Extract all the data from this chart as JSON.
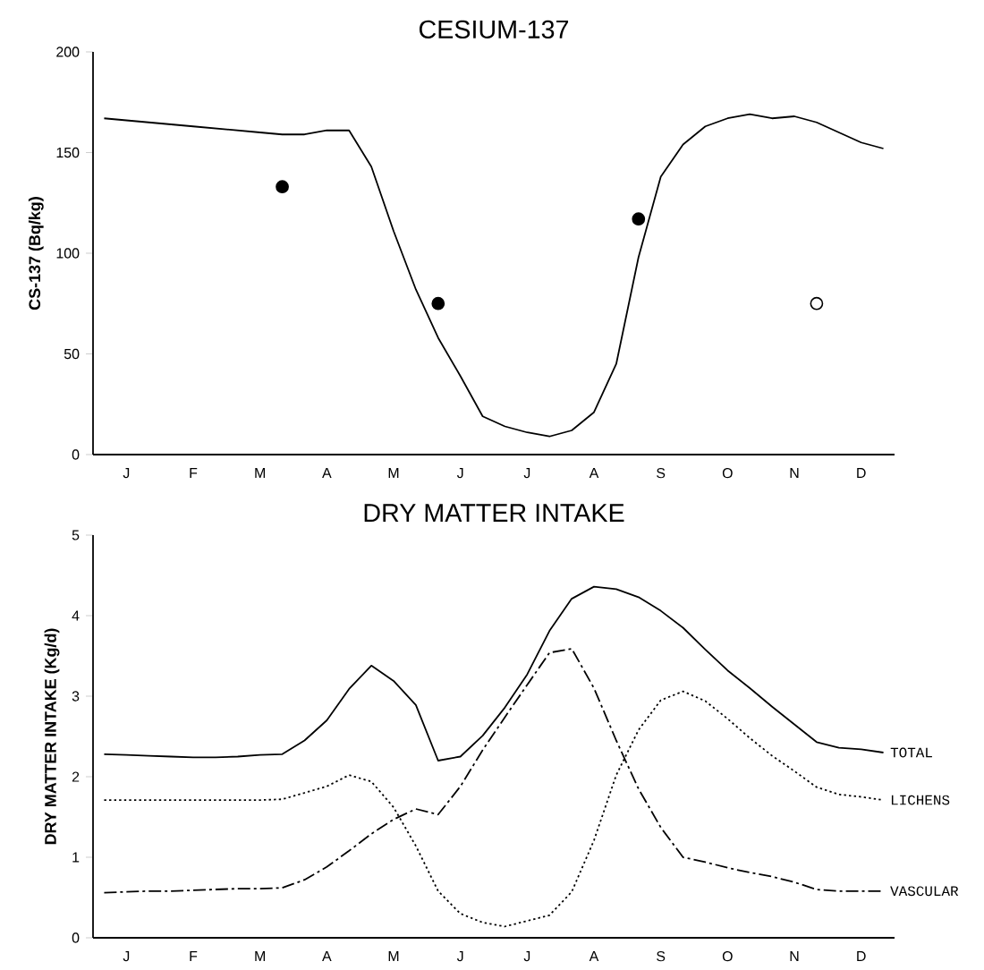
{
  "chart_data": [
    {
      "type": "line",
      "title": "CESIUM-137",
      "ylabel": "CS-137 (Bq/kg)",
      "categories": [
        null,
        "J",
        null,
        null,
        "F",
        null,
        null,
        "M",
        null,
        null,
        "A",
        null,
        null,
        "M",
        null,
        null,
        "J",
        null,
        null,
        "J",
        null,
        null,
        "A",
        null,
        null,
        "S",
        null,
        null,
        "O",
        null,
        null,
        "N",
        null,
        null,
        "D",
        null
      ],
      "ylim": [
        0,
        200
      ],
      "yticks": [
        0,
        50,
        100,
        150,
        200
      ],
      "series": [
        {
          "type": "line",
          "color": "#000000",
          "line_style": "solid",
          "values": [
            167,
            166,
            165,
            164,
            163,
            162,
            161,
            160,
            159,
            159,
            161,
            161,
            143,
            111,
            82,
            58,
            39,
            19,
            14,
            11,
            9,
            12,
            21,
            45,
            98,
            138,
            154,
            163,
            167,
            169,
            167,
            168,
            165,
            160,
            155,
            152
          ]
        },
        {
          "type": "scatter",
          "color": "#000000",
          "marker": "circle",
          "values": [
            null,
            null,
            null,
            null,
            null,
            null,
            null,
            null,
            133,
            null,
            null,
            null,
            null,
            null,
            null,
            75,
            null,
            null,
            null,
            null,
            null,
            null,
            null,
            null,
            117,
            null,
            null,
            null,
            null,
            null,
            null,
            null,
            null,
            null,
            null,
            null
          ]
        },
        {
          "type": "scatter",
          "color": "#ffffff",
          "marker": "circle",
          "values": [
            null,
            null,
            null,
            null,
            null,
            null,
            null,
            null,
            null,
            null,
            null,
            null,
            null,
            null,
            null,
            null,
            null,
            null,
            null,
            null,
            null,
            null,
            null,
            null,
            null,
            null,
            null,
            null,
            null,
            null,
            null,
            null,
            75,
            null,
            null,
            null
          ]
        }
      ]
    },
    {
      "type": "line",
      "title": "DRY MATTER INTAKE",
      "ylabel": "DRY MATTER INTAKE (Kg/d)",
      "categories": [
        null,
        "J",
        null,
        null,
        "F",
        null,
        null,
        "M",
        null,
        null,
        "A",
        null,
        null,
        "M",
        null,
        null,
        "J",
        null,
        null,
        "J",
        null,
        null,
        "A",
        null,
        null,
        "S",
        null,
        null,
        "O",
        null,
        null,
        "N",
        null,
        null,
        "D",
        null
      ],
      "ylim": [
        0,
        5
      ],
      "yticks": [
        0,
        1,
        2,
        3,
        4,
        5
      ],
      "series": [
        {
          "name": "TOTAL",
          "color": "#000000",
          "line_style": "solid",
          "values": [
            2.28,
            2.27,
            2.26,
            2.25,
            2.24,
            2.24,
            2.25,
            2.27,
            2.28,
            2.45,
            2.7,
            3.09,
            3.38,
            3.19,
            2.89,
            2.2,
            2.25,
            2.51,
            2.86,
            3.27,
            3.81,
            4.21,
            4.36,
            4.33,
            4.23,
            4.06,
            3.85,
            3.58,
            3.32,
            3.1,
            2.87,
            2.65,
            2.43,
            2.36,
            2.34,
            2.3
          ]
        },
        {
          "name": "LICHENS",
          "color": "#000000",
          "line_style": "dotted",
          "values": [
            1.71,
            1.71,
            1.71,
            1.71,
            1.71,
            1.71,
            1.71,
            1.71,
            1.72,
            1.8,
            1.88,
            2.02,
            1.94,
            1.62,
            1.14,
            0.58,
            0.3,
            0.19,
            0.14,
            0.21,
            0.28,
            0.57,
            1.21,
            2.02,
            2.58,
            2.95,
            3.06,
            2.94,
            2.72,
            2.48,
            2.26,
            2.07,
            1.87,
            1.78,
            1.75,
            1.71
          ]
        },
        {
          "name": "VASCULAR",
          "color": "#000000",
          "line_style": "dashed",
          "values": [
            0.56,
            0.57,
            0.58,
            0.58,
            0.59,
            0.6,
            0.61,
            0.61,
            0.62,
            0.72,
            0.88,
            1.08,
            1.29,
            1.47,
            1.6,
            1.53,
            1.88,
            2.33,
            2.74,
            3.14,
            3.54,
            3.59,
            3.1,
            2.45,
            1.85,
            1.37,
            1.0,
            0.94,
            0.87,
            0.81,
            0.76,
            0.69,
            0.6,
            0.58,
            0.58,
            0.58
          ]
        }
      ]
    }
  ]
}
